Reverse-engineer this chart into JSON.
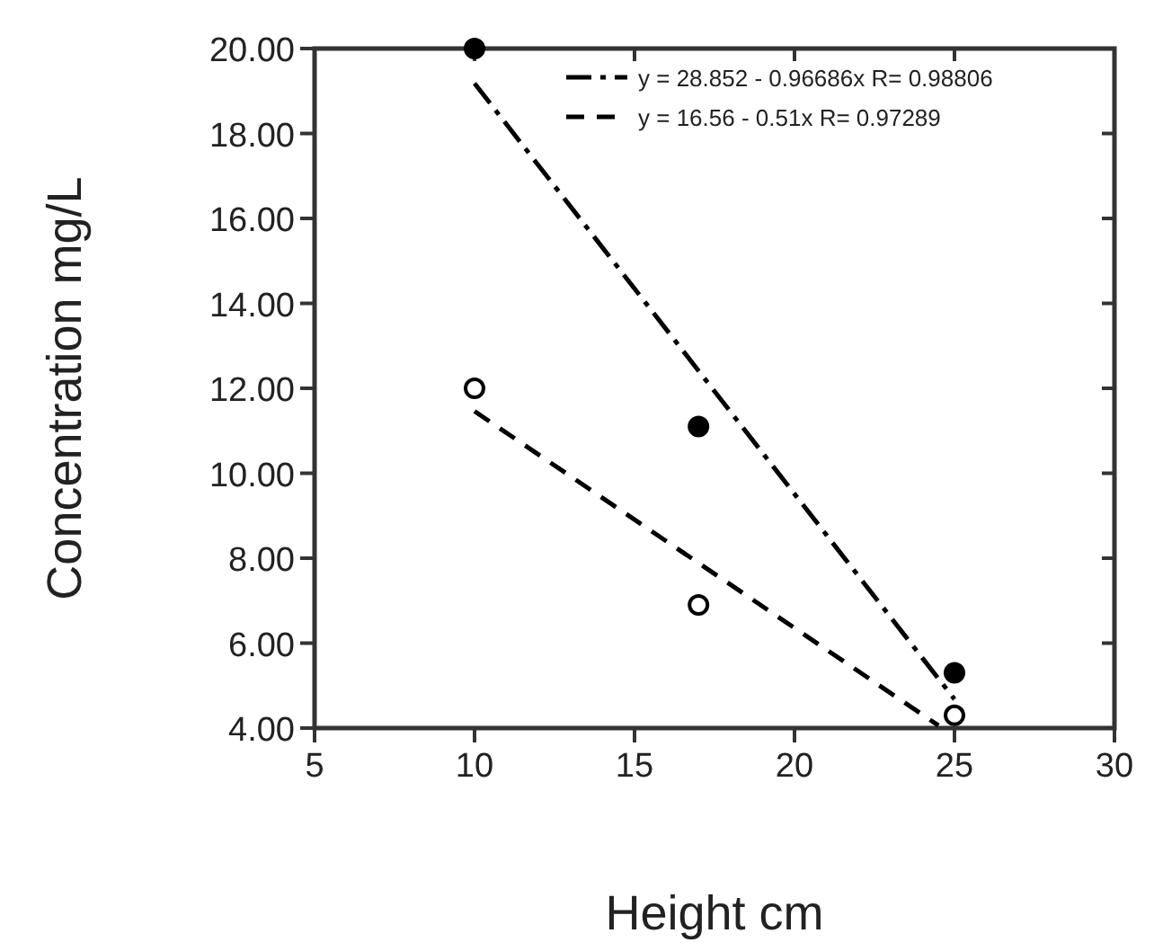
{
  "chart_data": {
    "type": "scatter",
    "xlabel": "Height cm",
    "ylabel": "Concentration mg/L",
    "xlim": [
      5,
      30
    ],
    "xticks": [
      5,
      10,
      15,
      20,
      25,
      30
    ],
    "ylim": [
      4,
      20
    ],
    "yticks": [
      {
        "value": 4,
        "label": "4.00"
      },
      {
        "value": 6,
        "label": "6.00"
      },
      {
        "value": 8,
        "label": "8.00"
      },
      {
        "value": 10,
        "label": "10.00"
      },
      {
        "value": 12,
        "label": "12.00"
      },
      {
        "value": 14,
        "label": "14.00"
      },
      {
        "value": 16,
        "label": "16.00"
      },
      {
        "value": 18,
        "label": "18.00"
      },
      {
        "value": 20,
        "label": "20.00"
      }
    ],
    "legend": "top right",
    "grid": false,
    "marker": "circle",
    "series": [
      {
        "color": "#000000",
        "x": [
          10,
          17,
          25
        ],
        "values": [
          20,
          11.1,
          5.3
        ]
      },
      {
        "color": "#000000",
        "x": [
          10,
          17,
          25
        ],
        "values": [
          12,
          6.9,
          4.3
        ]
      },
      {
        "type": "line",
        "name": "y = 28.852 - 0.96686x   R= 0.98806",
        "color": "#000000",
        "line_style": "dashed",
        "marker": "none",
        "x": [
          10,
          25
        ],
        "values": [
          19.18,
          4.68
        ]
      },
      {
        "type": "line",
        "name": "y = 16.56 - 0.51x   R= 0.97289",
        "color": "#000000",
        "line_style": "dashed",
        "marker": "none",
        "x": [
          10,
          24.5
        ],
        "values": [
          11.46,
          4.06
        ]
      }
    ]
  }
}
